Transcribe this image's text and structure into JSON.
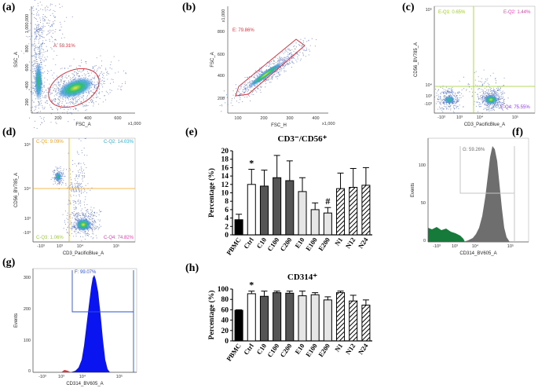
{
  "colors": {
    "cluster_blue": "#2f6fd6",
    "cluster_core": "#2fc06b",
    "cluster_hot": "#f2e23a",
    "gate_red": "#d9343f",
    "gate_quadrant": "#f0a21a",
    "gate_green": "#9ccd2a",
    "histogram_gray": "#6e6e6e",
    "histogram_blue": "#0a14f0",
    "histogram_green": "#167a3a",
    "bar_black": "#000000",
    "bar_dark": "#555555",
    "bar_light": "#e6e6e6",
    "bar_white": "#ffffff"
  },
  "panels": {
    "a": {
      "label": "(a)",
      "xlabel": "FSC_A",
      "ylabel": "SSC_A",
      "x_ticks": [
        "200",
        "400",
        "600"
      ],
      "x_mult": "x1,000",
      "y_mult": "x1,000",
      "y_ticks": [
        "1,000,000",
        "800",
        "600",
        "400",
        "200"
      ],
      "gate": "A: 59.31%"
    },
    "b": {
      "label": "(b)",
      "xlabel": "FSC_H",
      "ylabel": "FSC_A",
      "x_ticks": [
        "100",
        "200",
        "300",
        "400"
      ],
      "x_mult": "x1,000",
      "y_mult": "x1,000",
      "y_ticks": [
        "800",
        "600",
        "400",
        "200"
      ],
      "gate": "E: 79.86%"
    },
    "c": {
      "label": "(c)",
      "xlabel": "CD3_PacificBlue_A",
      "ylabel": "CD56_BV785_A",
      "y_ticks": [
        "10⁵",
        "10⁴",
        "10³",
        "-10³"
      ],
      "x_ticks": [
        "-10³",
        "10³",
        "10⁴",
        "10⁵"
      ],
      "q1": "E-Q1: 0.65%",
      "q2": "E-Q2: 1.44%",
      "q4": "E-Q4: 75.55%"
    },
    "d": {
      "label": "(d)",
      "xlabel": "CD3_PacificBlue_A",
      "ylabel": "CD56_BV785_A",
      "y_ticks": [
        "10⁵",
        "10⁴",
        "10³",
        "-10³"
      ],
      "x_ticks": [
        "-10³",
        "10³",
        "10⁴",
        "10⁵"
      ],
      "q1": "C-Q1: 9.09%",
      "q2": "C-Q2: 14.03%",
      "q3": "C-Q3: 1.06%",
      "q4": "C-Q4: 74.82%"
    },
    "f": {
      "label": "(f)",
      "xlabel": "CD314_BV605_A",
      "ylabel": "Events",
      "y_ticks": [
        "100",
        "50",
        "0"
      ],
      "x_ticks": [
        "-10³",
        "10³",
        "10⁴",
        "10⁵"
      ],
      "gate": "G: 59.26%"
    },
    "g": {
      "label": "(g)",
      "xlabel": "CD314_BV605_A",
      "ylabel": "Events",
      "y_ticks": [
        "300",
        "200",
        "100",
        "0"
      ],
      "x_ticks": [
        "-10³",
        "10³",
        "10⁴",
        "10⁵"
      ],
      "gate": "F: 99.07%"
    },
    "e": {
      "label": "(e)"
    },
    "h": {
      "label": "(h)"
    }
  },
  "chart_data": [
    {
      "panel": "e",
      "type": "bar",
      "title": "CD3⁻/CD56⁺",
      "ylabel": "Percentage (%)",
      "ylim": [
        0,
        20
      ],
      "y_ticks": [
        0,
        2,
        4,
        6,
        8,
        10,
        12,
        14,
        16,
        18,
        20
      ],
      "categories": [
        "PBMC",
        "Ctrl",
        "C10",
        "C100",
        "C200",
        "E10",
        "E100",
        "E200",
        "N1",
        "N12",
        "N24"
      ],
      "values": [
        3.6,
        12.0,
        11.6,
        13.6,
        12.9,
        10.3,
        6.0,
        5.2,
        11.0,
        11.3,
        11.8
      ],
      "errors": [
        1.3,
        3.6,
        3.8,
        5.3,
        4.7,
        3.3,
        1.6,
        1.3,
        3.7,
        4.5,
        4.2
      ],
      "annotations": [
        {
          "category": "Ctrl",
          "text": "*"
        },
        {
          "category": "E200",
          "text": "#"
        }
      ],
      "grid": false
    },
    {
      "panel": "h",
      "type": "bar",
      "title": "CD314⁺",
      "ylabel": "Percentage (%)",
      "ylim": [
        0,
        100
      ],
      "y_ticks": [
        0,
        20,
        40,
        60,
        80,
        100
      ],
      "categories": [
        "PBMC",
        "Ctrl",
        "C10",
        "C100",
        "C200",
        "E10",
        "E100",
        "E200",
        "N1",
        "N12",
        "N24"
      ],
      "values": [
        59,
        91,
        86,
        93,
        92,
        87,
        89,
        79,
        93,
        77,
        69
      ],
      "errors": [
        1,
        5,
        10,
        3,
        4,
        9,
        4,
        6,
        3,
        11,
        10
      ],
      "annotations": [
        {
          "category": "Ctrl",
          "text": "*"
        }
      ],
      "grid": false
    }
  ]
}
